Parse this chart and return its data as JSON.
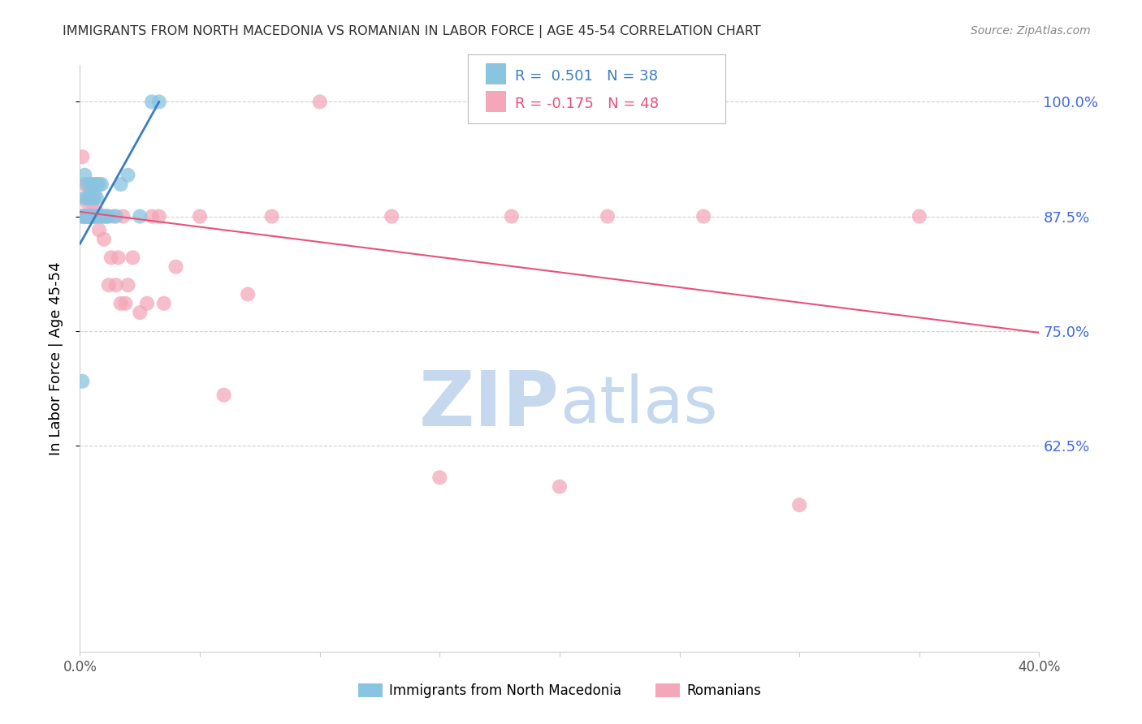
{
  "title": "IMMIGRANTS FROM NORTH MACEDONIA VS ROMANIAN IN LABOR FORCE | AGE 45-54 CORRELATION CHART",
  "source": "Source: ZipAtlas.com",
  "ylabel": "In Labor Force | Age 45-54",
  "xmin": 0.0,
  "xmax": 0.4,
  "ymin": 0.4,
  "ymax": 1.04,
  "yticks": [
    0.625,
    0.75,
    0.875,
    1.0
  ],
  "ytick_labels": [
    "62.5%",
    "75.0%",
    "87.5%",
    "100.0%"
  ],
  "blue_R": 0.501,
  "blue_N": 38,
  "pink_R": -0.175,
  "pink_N": 48,
  "blue_color": "#89c4e1",
  "pink_color": "#f4a7b9",
  "blue_line_color": "#3a7ebf",
  "pink_line_color": "#e8517a",
  "blue_label": "Immigrants from North Macedonia",
  "pink_label": "Romanians",
  "blue_x": [
    0.001,
    0.001,
    0.001,
    0.002,
    0.002,
    0.002,
    0.002,
    0.003,
    0.003,
    0.003,
    0.003,
    0.004,
    0.004,
    0.004,
    0.004,
    0.005,
    0.005,
    0.005,
    0.005,
    0.006,
    0.006,
    0.006,
    0.007,
    0.007,
    0.007,
    0.008,
    0.008,
    0.009,
    0.009,
    0.01,
    0.011,
    0.012,
    0.015,
    0.017,
    0.02,
    0.025,
    0.03,
    0.033
  ],
  "blue_y": [
    0.695,
    0.875,
    0.875,
    0.92,
    0.895,
    0.875,
    0.875,
    0.91,
    0.895,
    0.875,
    0.875,
    0.895,
    0.875,
    0.875,
    0.875,
    0.91,
    0.895,
    0.875,
    0.875,
    0.91,
    0.895,
    0.875,
    0.91,
    0.895,
    0.875,
    0.91,
    0.875,
    0.91,
    0.875,
    0.875,
    0.875,
    0.875,
    0.875,
    0.91,
    0.92,
    0.875,
    1.0,
    1.0
  ],
  "pink_x": [
    0.001,
    0.001,
    0.002,
    0.002,
    0.003,
    0.003,
    0.003,
    0.004,
    0.004,
    0.005,
    0.005,
    0.006,
    0.006,
    0.007,
    0.007,
    0.008,
    0.009,
    0.01,
    0.011,
    0.012,
    0.013,
    0.014,
    0.015,
    0.016,
    0.017,
    0.018,
    0.019,
    0.02,
    0.022,
    0.025,
    0.028,
    0.03,
    0.033,
    0.035,
    0.04,
    0.05,
    0.06,
    0.07,
    0.08,
    0.1,
    0.13,
    0.15,
    0.18,
    0.2,
    0.22,
    0.26,
    0.3,
    0.35
  ],
  "pink_y": [
    0.875,
    0.94,
    0.875,
    0.91,
    0.875,
    0.89,
    0.875,
    0.91,
    0.875,
    0.875,
    0.89,
    0.875,
    0.9,
    0.88,
    0.875,
    0.86,
    0.875,
    0.85,
    0.875,
    0.8,
    0.83,
    0.875,
    0.8,
    0.83,
    0.78,
    0.875,
    0.78,
    0.8,
    0.83,
    0.77,
    0.78,
    0.875,
    0.875,
    0.78,
    0.82,
    0.875,
    0.68,
    0.79,
    0.875,
    1.0,
    0.875,
    0.59,
    0.875,
    0.58,
    0.875,
    0.875,
    0.56,
    0.875
  ],
  "blue_line_x": [
    0.0,
    0.033
  ],
  "blue_line_y": [
    0.845,
    1.0
  ],
  "pink_line_x": [
    0.0,
    0.4
  ],
  "pink_line_y": [
    0.88,
    0.748
  ],
  "watermark_zip": "ZIP",
  "watermark_atlas": "atlas",
  "watermark_color": "#c5d8ee",
  "background_color": "#ffffff",
  "grid_color": "#d0d0d0",
  "right_label_color": "#4169e1",
  "title_color": "#303030",
  "axis_tick_color": "#555555"
}
